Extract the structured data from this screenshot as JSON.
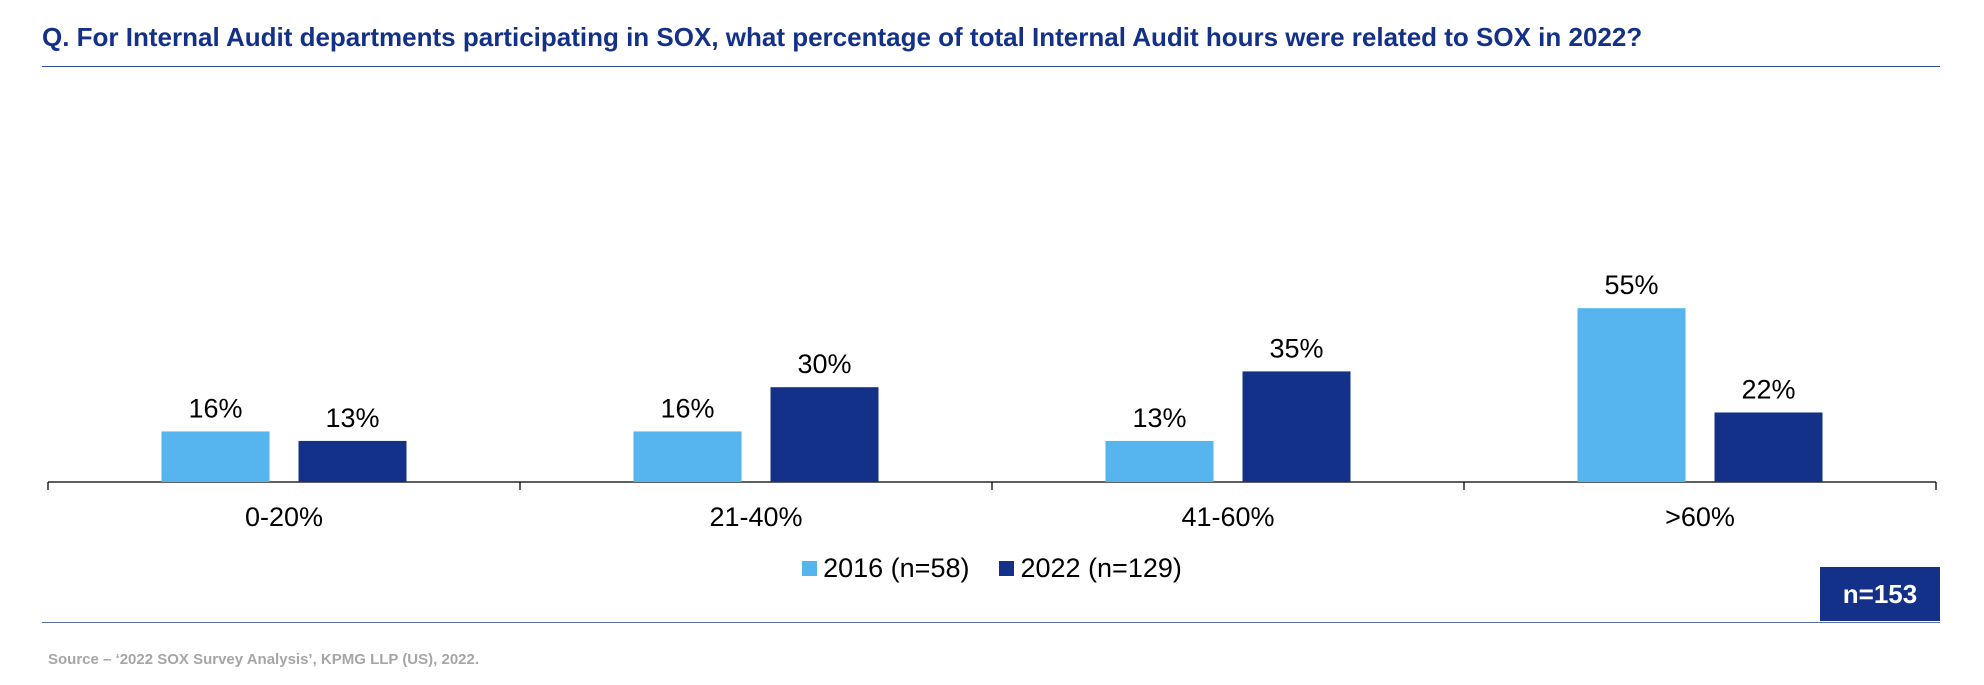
{
  "title": "Q. For Internal Audit departments participating in SOX, what percentage of total Internal Audit hours were related to SOX in 2022?",
  "badge": "n=153",
  "source": "Source – ‘2022 SOX Survey Analysis’, KPMG LLP (US), 2022.",
  "colors": {
    "s2016": "#56b4ee",
    "s2022": "#14318a",
    "accent": "#14318a"
  },
  "chart_data": {
    "type": "bar",
    "title": "Q. For Internal Audit departments participating in SOX, what percentage of total Internal Audit hours were related to SOX in 2022?",
    "xlabel": "",
    "ylabel": "",
    "ylim": [
      0,
      60
    ],
    "grid": false,
    "legend_position": "bottom",
    "categories": [
      "0-20%",
      "21-40%",
      "41-60%",
      ">60%"
    ],
    "series": [
      {
        "name": "2016 (n=58)",
        "values": [
          16,
          16,
          13,
          55
        ],
        "labels": [
          "16%",
          "16%",
          "13%",
          "55%"
        ],
        "color": "#56b4ee"
      },
      {
        "name": "2022 (n=129)",
        "values": [
          13,
          30,
          35,
          22
        ],
        "labels": [
          "13%",
          "30%",
          "35%",
          "22%"
        ],
        "color": "#14318a"
      }
    ]
  }
}
